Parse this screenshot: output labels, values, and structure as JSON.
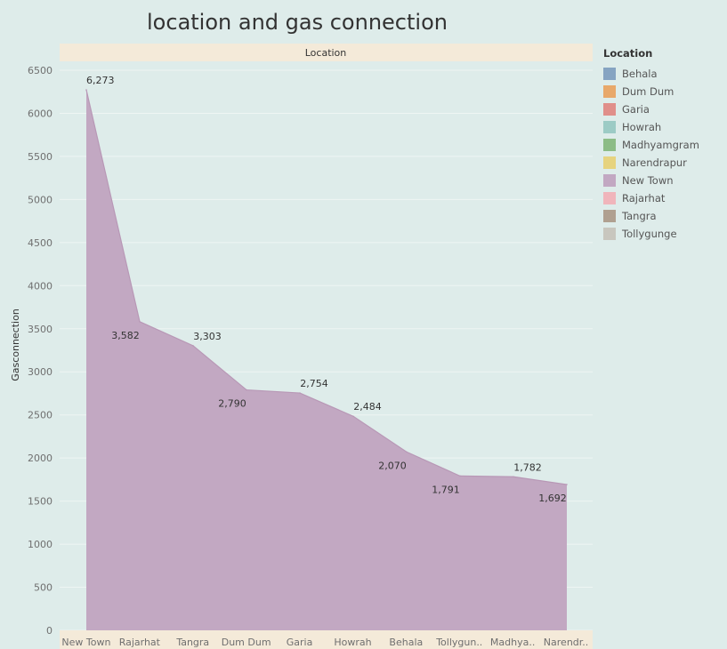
{
  "colors": {
    "background": "#deecea",
    "header_band": "#f4ead9",
    "area_fill": "#c2a8c2",
    "area_stroke": "#b898b6",
    "grid": "#eef5f3"
  },
  "chart_data": {
    "type": "area",
    "title": "location and gas connection",
    "column_header": "Location",
    "ylabel": "Gasconnection",
    "xlabel": "",
    "ylim": [
      0,
      6500
    ],
    "yticks": [
      "0",
      "500",
      "1000",
      "1500",
      "2000",
      "2500",
      "3000",
      "3500",
      "4000",
      "4500",
      "5000",
      "5500",
      "6000",
      "6500"
    ],
    "ytick_values": [
      0,
      500,
      1000,
      1500,
      2000,
      2500,
      3000,
      3500,
      4000,
      4500,
      5000,
      5500,
      6000,
      6500
    ],
    "categories": [
      "New Town",
      "Rajarhat",
      "Tangra",
      "Dum Dum",
      "Garia",
      "Howrah",
      "Behala",
      "Tollygun..",
      "Madhya..",
      "Narendr.."
    ],
    "values": [
      6273,
      3582,
      3303,
      2790,
      2754,
      2484,
      2070,
      1791,
      1782,
      1692
    ],
    "data_labels": [
      "6,273",
      "3,582",
      "3,303",
      "2,790",
      "2,754",
      "2,484",
      "2,070",
      "1,791",
      "1,782",
      "1,692"
    ],
    "label_position": [
      "above",
      "below",
      "above",
      "below",
      "above",
      "above",
      "below",
      "below",
      "above",
      "below"
    ],
    "grid": true,
    "legend_position": "right",
    "legend": {
      "title": "Location",
      "items": [
        {
          "label": "Behala",
          "color": "#86a4c2"
        },
        {
          "label": "Dum Dum",
          "color": "#e8a86a"
        },
        {
          "label": "Garia",
          "color": "#e08f8a"
        },
        {
          "label": "Howrah",
          "color": "#9ccbc5"
        },
        {
          "label": "Madhyamgram",
          "color": "#8cbc86"
        },
        {
          "label": "Narendrapur",
          "color": "#e6d37f"
        },
        {
          "label": "New Town",
          "color": "#c2a8c2"
        },
        {
          "label": "Rajarhat",
          "color": "#f0b5bb"
        },
        {
          "label": "Tangra",
          "color": "#b0a090"
        },
        {
          "label": "Tollygunge",
          "color": "#c8c6be"
        }
      ]
    }
  }
}
